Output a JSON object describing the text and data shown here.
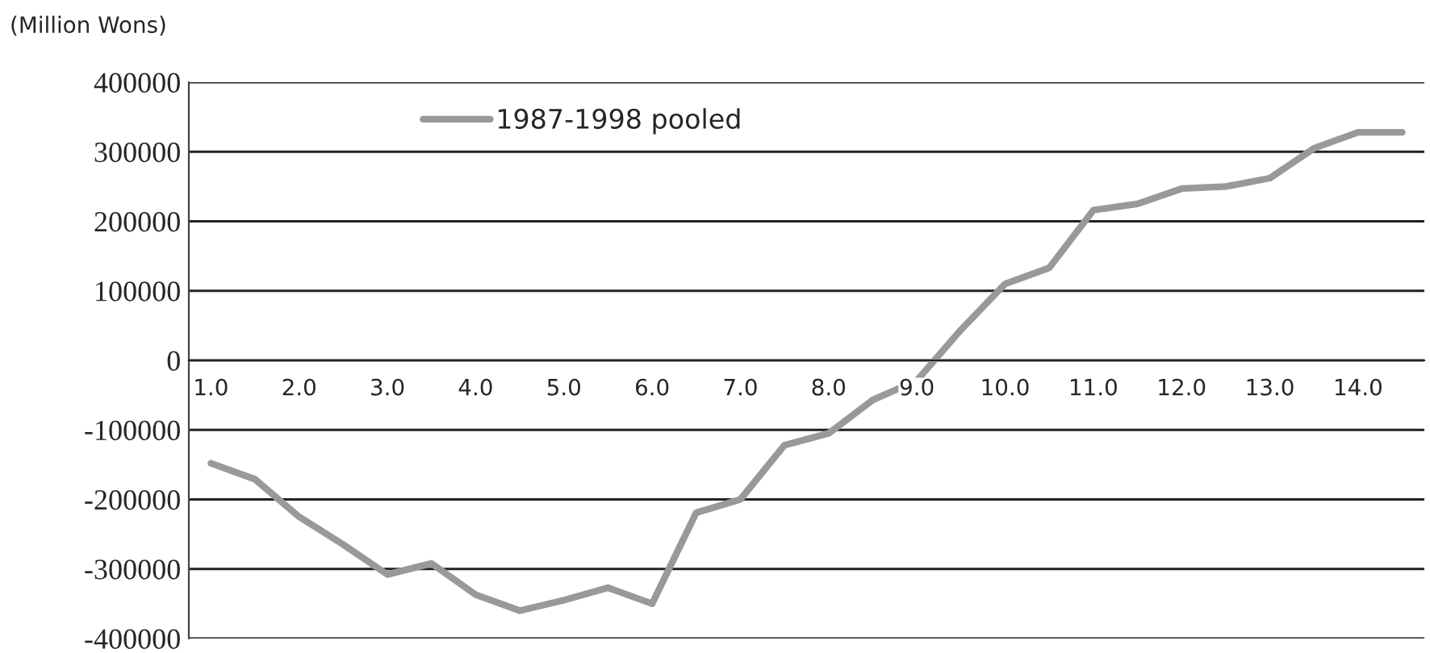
{
  "chart_data": {
    "type": "line",
    "ylabel": "(Million Wons)",
    "categories": [
      "1.0",
      null,
      "2.0",
      null,
      "3.0",
      null,
      "4.0",
      null,
      "5.0",
      null,
      "6.0",
      null,
      "7.0",
      null,
      "8.0",
      null,
      "9.0",
      null,
      "10.0",
      null,
      "11.0",
      null,
      "12.0",
      null,
      "13.0",
      null,
      "14.0",
      null
    ],
    "series": [
      {
        "name": "1987-1998 pooled",
        "color": "#999999",
        "values": [
          -148000,
          -171000,
          -225000,
          -265000,
          -308000,
          -292000,
          -337000,
          -360000,
          -345000,
          -327000,
          -350000,
          -219000,
          -200000,
          -122000,
          -105000,
          -57000,
          -29000,
          44000,
          110000,
          133000,
          216000,
          225000,
          247000,
          250000,
          262000,
          305000,
          328000,
          328000
        ]
      }
    ],
    "ylim": [
      -400000,
      400000
    ],
    "yticks": [
      -400000,
      -300000,
      -200000,
      -100000,
      0,
      100000,
      200000,
      300000,
      400000
    ],
    "grid": "y",
    "legend": "top left",
    "marker": "none",
    "line_style": "solid"
  }
}
